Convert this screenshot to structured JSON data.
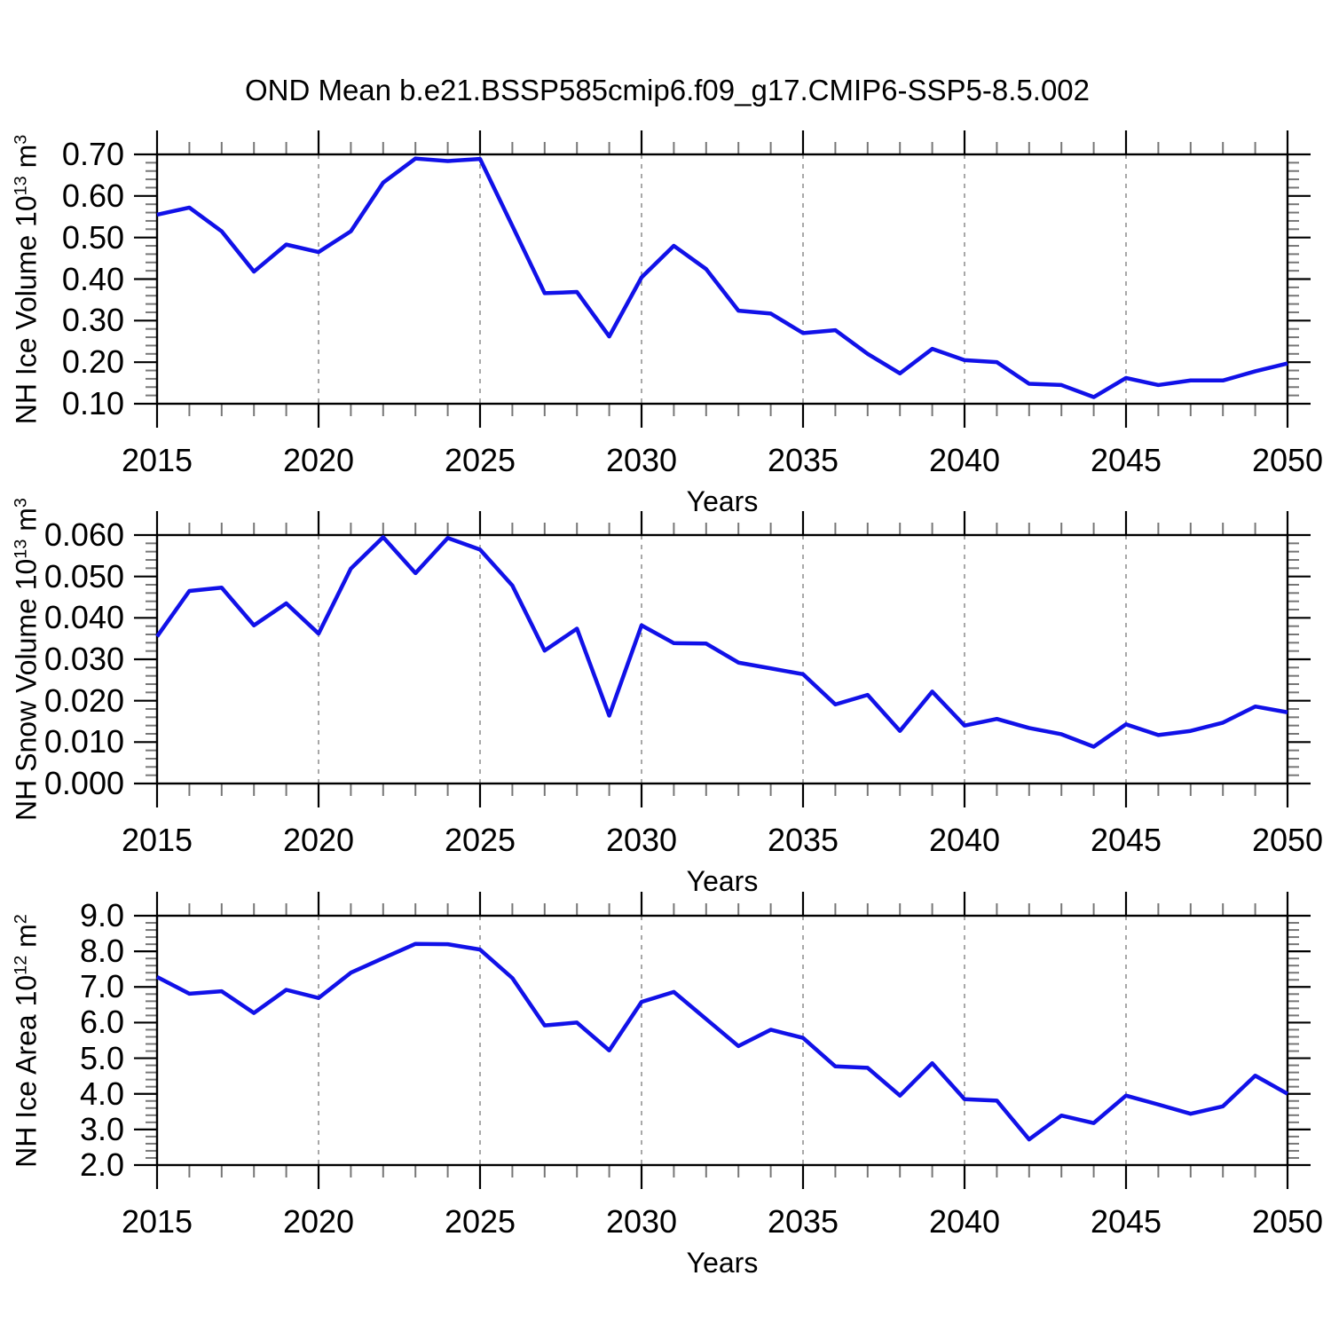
{
  "title": "OND Mean b.e21.BSSP585cmip6.f09_g17.CMIP6-SSP5-8.5.002",
  "line_color": "#1111e8",
  "grid_color": "#999999",
  "x_axis": {
    "label": "Years",
    "major_ticks": [
      2015,
      2020,
      2025,
      2030,
      2035,
      2040,
      2045,
      2050
    ],
    "grid_years": [
      2020,
      2025,
      2030,
      2035,
      2040,
      2045
    ],
    "range": [
      2015,
      2050
    ],
    "minor_step_years": 1
  },
  "chart_data": [
    {
      "type": "line",
      "series_name": "NH Ice Volume",
      "ylabel": "NH Ice Volume 10¹³ m³",
      "ylabel_parts": [
        {
          "text": "NH Ice Volume 10"
        },
        {
          "sup": "13"
        },
        {
          "text": " m"
        },
        {
          "sup": "3"
        }
      ],
      "xlabel": "Years",
      "ylim": [
        0.1,
        0.7
      ],
      "y_minor_step": 0.02,
      "ytick_labels": [
        "0.70",
        "0.60",
        "0.50",
        "0.40",
        "0.30",
        "0.20",
        "0.10"
      ],
      "ytick_values": [
        0.7,
        0.6,
        0.5,
        0.4,
        0.3,
        0.2,
        0.1
      ],
      "x": [
        2015,
        2016,
        2017,
        2018,
        2019,
        2020,
        2021,
        2022,
        2023,
        2024,
        2025,
        2026,
        2027,
        2028,
        2029,
        2030,
        2031,
        2032,
        2033,
        2034,
        2035,
        2036,
        2037,
        2038,
        2039,
        2040,
        2041,
        2042,
        2043,
        2044,
        2045,
        2046,
        2047,
        2048,
        2049,
        2050
      ],
      "values": [
        0.555,
        0.572,
        0.515,
        0.418,
        0.483,
        0.465,
        0.515,
        0.632,
        0.69,
        0.684,
        0.689,
        0.528,
        0.366,
        0.369,
        0.262,
        0.404,
        0.48,
        0.424,
        0.324,
        0.317,
        0.27,
        0.277,
        0.22,
        0.173,
        0.232,
        0.205,
        0.2,
        0.148,
        0.145,
        0.116,
        0.162,
        0.145,
        0.156,
        0.156,
        0.178,
        0.197
      ]
    },
    {
      "type": "line",
      "series_name": "NH Snow Volume",
      "ylabel": "NH Snow Volume 10¹³ m³",
      "ylabel_parts": [
        {
          "text": "NH Snow Volume 10"
        },
        {
          "sup": "13"
        },
        {
          "text": " m"
        },
        {
          "sup": "3"
        }
      ],
      "xlabel": "Years",
      "ylim": [
        0.0,
        0.06
      ],
      "y_minor_step": 0.002,
      "ytick_labels": [
        "0.060",
        "0.050",
        "0.040",
        "0.030",
        "0.020",
        "0.010",
        "0.000"
      ],
      "ytick_values": [
        0.06,
        0.05,
        0.04,
        0.03,
        0.02,
        0.01,
        0.0
      ],
      "x": [
        2015,
        2016,
        2017,
        2018,
        2019,
        2020,
        2021,
        2022,
        2023,
        2024,
        2025,
        2026,
        2027,
        2028,
        2029,
        2030,
        2031,
        2032,
        2033,
        2034,
        2035,
        2036,
        2037,
        2038,
        2039,
        2040,
        2041,
        2042,
        2043,
        2044,
        2045,
        2046,
        2047,
        2048,
        2049,
        2050
      ],
      "values": [
        0.0355,
        0.0465,
        0.0473,
        0.0382,
        0.0435,
        0.0362,
        0.0519,
        0.0595,
        0.0508,
        0.0593,
        0.0565,
        0.0478,
        0.0321,
        0.0374,
        0.0164,
        0.0382,
        0.0339,
        0.0338,
        0.0292,
        0.0278,
        0.0264,
        0.0191,
        0.0214,
        0.0127,
        0.0222,
        0.014,
        0.0156,
        0.0134,
        0.0119,
        0.0089,
        0.0143,
        0.0117,
        0.0127,
        0.0147,
        0.0186,
        0.0172
      ]
    },
    {
      "type": "line",
      "series_name": "NH Ice Area",
      "ylabel": "NH Ice Area 10¹² m²",
      "ylabel_parts": [
        {
          "text": "NH Ice Area 10"
        },
        {
          "sup": "12"
        },
        {
          "text": " m"
        },
        {
          "sup": "2"
        }
      ],
      "xlabel": "Years",
      "ylim": [
        2.0,
        9.0
      ],
      "y_minor_step": 0.2,
      "ytick_labels": [
        "9.0",
        "8.0",
        "7.0",
        "6.0",
        "5.0",
        "4.0",
        "3.0",
        "2.0"
      ],
      "ytick_values": [
        9.0,
        8.0,
        7.0,
        6.0,
        5.0,
        4.0,
        3.0,
        2.0
      ],
      "x": [
        2015,
        2016,
        2017,
        2018,
        2019,
        2020,
        2021,
        2022,
        2023,
        2024,
        2025,
        2026,
        2027,
        2028,
        2029,
        2030,
        2031,
        2032,
        2033,
        2034,
        2035,
        2036,
        2037,
        2038,
        2039,
        2040,
        2041,
        2042,
        2043,
        2044,
        2045,
        2046,
        2047,
        2048,
        2049,
        2050
      ],
      "values": [
        7.28,
        6.81,
        6.88,
        6.27,
        6.92,
        6.69,
        7.4,
        7.81,
        8.21,
        8.2,
        8.05,
        7.25,
        5.92,
        6.0,
        5.22,
        6.58,
        6.86,
        6.1,
        5.34,
        5.8,
        5.57,
        4.77,
        4.73,
        3.95,
        4.86,
        3.85,
        3.81,
        2.72,
        3.39,
        3.18,
        3.95,
        3.7,
        3.44,
        3.65,
        4.51,
        4.0
      ]
    }
  ]
}
